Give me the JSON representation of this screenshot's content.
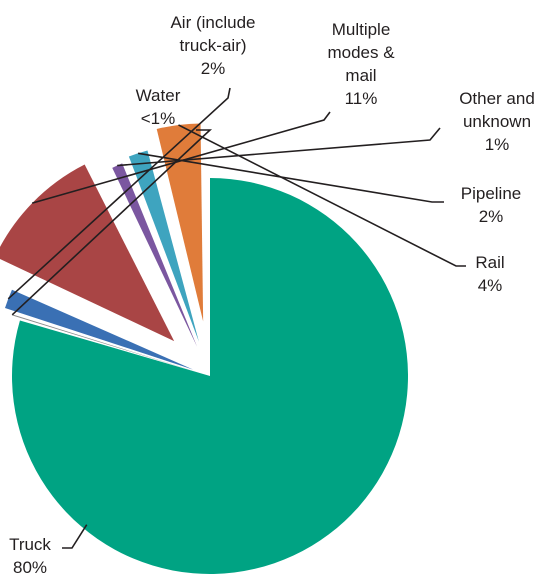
{
  "chart_data": {
    "type": "pie",
    "exploded": true,
    "slices": [
      {
        "key": "truck",
        "label_lines": [
          "Truck"
        ],
        "value_label": "80%",
        "value": 80,
        "color": "#00a383"
      },
      {
        "key": "water",
        "label_lines": [
          "Water"
        ],
        "value_label": "<1%",
        "value": 0.3,
        "color": "#8a8a8a"
      },
      {
        "key": "air",
        "label_lines": [
          "Air (include",
          "truck-air)"
        ],
        "value_label": "2%",
        "value": 2,
        "color": "#3a70b4"
      },
      {
        "key": "multiple",
        "label_lines": [
          "Multiple",
          "modes &",
          "mail"
        ],
        "value_label": "11%",
        "value": 11,
        "color": "#a94545"
      },
      {
        "key": "other",
        "label_lines": [
          "Other and",
          "unknown"
        ],
        "value_label": "1%",
        "value": 1.3,
        "color": "#7b57a0"
      },
      {
        "key": "pipeline",
        "label_lines": [
          "Pipeline"
        ],
        "value_label": "2%",
        "value": 2,
        "color": "#3ea4bf"
      },
      {
        "key": "rail",
        "label_lines": [
          "Rail"
        ],
        "value_label": "4%",
        "value": 4,
        "color": "#e07c3a"
      }
    ]
  }
}
